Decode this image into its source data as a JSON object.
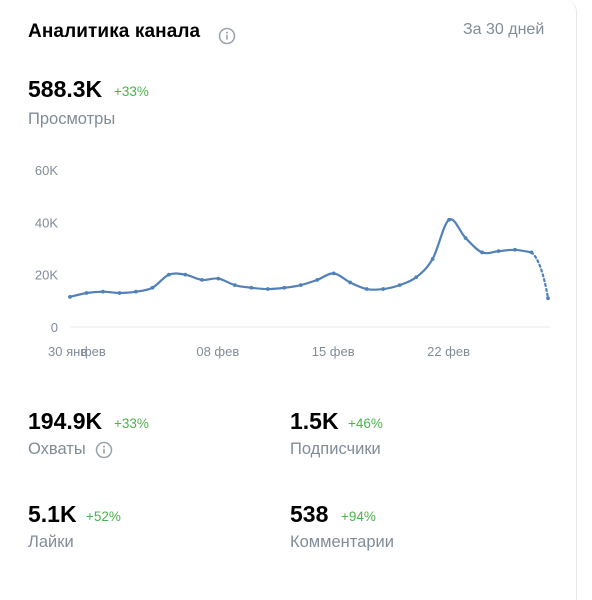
{
  "header": {
    "title": "Аналитика канала",
    "period": "За 30 дней"
  },
  "views": {
    "value": "588.3K",
    "delta": "+33%",
    "label": "Просмотры"
  },
  "reach": {
    "value": "194.9K",
    "delta": "+33%",
    "label": "Охваты"
  },
  "subscribers": {
    "value": "1.5K",
    "delta": "+46%",
    "label": "Подписчики"
  },
  "likes": {
    "value": "5.1K",
    "delta": "+52%",
    "label": "Лайки"
  },
  "comments": {
    "value": "538",
    "delta": "+94%",
    "label": "Комментарии"
  },
  "colors": {
    "line": "#5181b8",
    "positive": "#4bb34b",
    "muted": "#818c99",
    "grid": "#e7e8ec"
  },
  "icons": {
    "info": "info-circle-icon"
  },
  "chart_data": {
    "type": "line",
    "title": "",
    "xlabel": "",
    "ylabel": "",
    "ylim": [
      0,
      60000
    ],
    "y_ticks": [
      "0",
      "20K",
      "40K",
      "60K"
    ],
    "x_tick_labels": [
      "30 янв",
      "фев",
      "08 фев",
      "15 фев",
      "22 фев"
    ],
    "x": [
      "30 янв",
      "31 янв",
      "01 фев",
      "02 фев",
      "03 фев",
      "04 фев",
      "05 фев",
      "06 фев",
      "07 фев",
      "08 фев",
      "09 фев",
      "10 фев",
      "11 фев",
      "12 фев",
      "13 фев",
      "14 фев",
      "15 фев",
      "16 фев",
      "17 фев",
      "18 фев",
      "19 фев",
      "20 фев",
      "21 фев",
      "22 фев",
      "23 фев",
      "24 фев",
      "25 фев",
      "26 фев",
      "27 фев",
      "28 фев"
    ],
    "series": [
      {
        "values": [
          11500,
          13000,
          13500,
          13000,
          13500,
          15000,
          20000,
          20000,
          18000,
          18500,
          16000,
          15000,
          14500,
          15000,
          16000,
          18000,
          20500,
          17000,
          14500,
          14500,
          16000,
          19000,
          26000,
          41000,
          34000,
          28500,
          29000,
          29500,
          28500,
          11000
        ],
        "last_segment_dashed": true
      }
    ],
    "grid": "horizontal-bottom-only",
    "legend": "none"
  }
}
